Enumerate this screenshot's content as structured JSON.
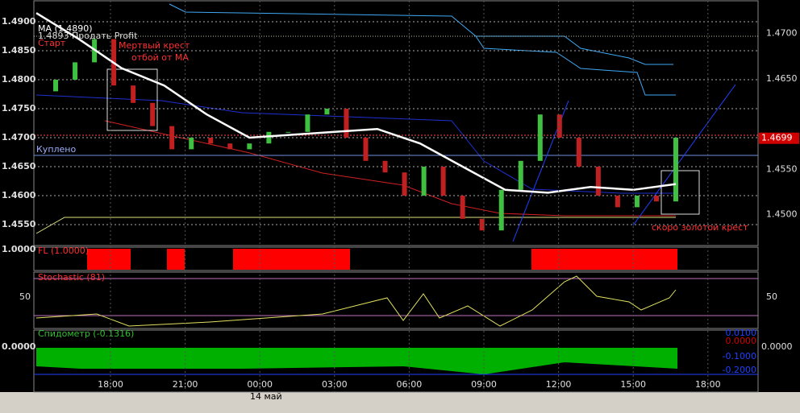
{
  "main_panel": {
    "ma_label": "MA (1.4890)",
    "order_label": "1.4893 Продать Profit",
    "start_label": "Старт",
    "bought_label": "Куплено",
    "annotations": [
      "Мертвый крест",
      "отбой от MA",
      "скоро золотой крест"
    ],
    "price_marker": {
      "value": 1.4699,
      "label": "1.4699"
    },
    "ylim": [
      1.45139,
      1.49375
    ],
    "yticks": [
      {
        "value": 1.49,
        "label": "1.4900"
      },
      {
        "value": 1.485,
        "label": "1.4850"
      },
      {
        "value": 1.48,
        "label": "1.4800"
      },
      {
        "value": 1.475,
        "label": "1.4750"
      },
      {
        "value": 1.47,
        "label": "1.4700"
      },
      {
        "value": 1.465,
        "label": "1.4650"
      },
      {
        "value": 1.46,
        "label": "1.4600"
      },
      {
        "value": 1.455,
        "label": "1.4550"
      }
    ],
    "y2lim": [
      1.4466,
      1.4737
    ],
    "y2ticks": [
      {
        "value": 1.47,
        "label": "1.4700"
      },
      {
        "value": 1.465,
        "label": "1.4650"
      },
      {
        "value": 1.455,
        "label": "1.4550"
      },
      {
        "value": 1.45,
        "label": "1.4500"
      }
    ],
    "price": [
      1.478,
      1.48,
      1.483,
      1.487,
      1.479,
      1.476,
      1.472,
      1.468,
      1.47,
      1.469,
      1.468,
      1.469,
      1.471,
      1.471,
      1.474,
      1.475,
      1.47,
      1.466,
      1.464,
      1.46,
      1.465,
      1.46,
      1.456,
      1.454,
      1.461,
      1.466,
      1.474,
      1.47,
      1.465,
      1.46,
      1.458,
      1.46,
      1.459,
      1.47
    ],
    "ma": [
      1.4915,
      1.487,
      1.482,
      1.479,
      1.474,
      1.47,
      1.4705,
      1.471,
      1.4715,
      1.469,
      1.465,
      1.461,
      1.4605,
      1.4615,
      1.461,
      1.462
    ]
  },
  "fl_panel": {
    "label": "FL (1.0000)",
    "ytick": "1.0000"
  },
  "stoch_panel": {
    "label": "Stochastic (81)",
    "ytick": "50",
    "y2tick": "50"
  },
  "speed_panel": {
    "label": "Спидометр (-0.1316)",
    "ytick": "0.0000",
    "y2tick": "0.0000",
    "levels": [
      "0.0100",
      "0.0000",
      "-0.1000",
      "-0.2000"
    ]
  },
  "time_axis": {
    "labels": [
      "18:00",
      "21:00",
      "00:00",
      "03:00",
      "06:00",
      "09:00",
      "12:00",
      "15:00",
      "18:00"
    ],
    "date": "14 май"
  }
}
